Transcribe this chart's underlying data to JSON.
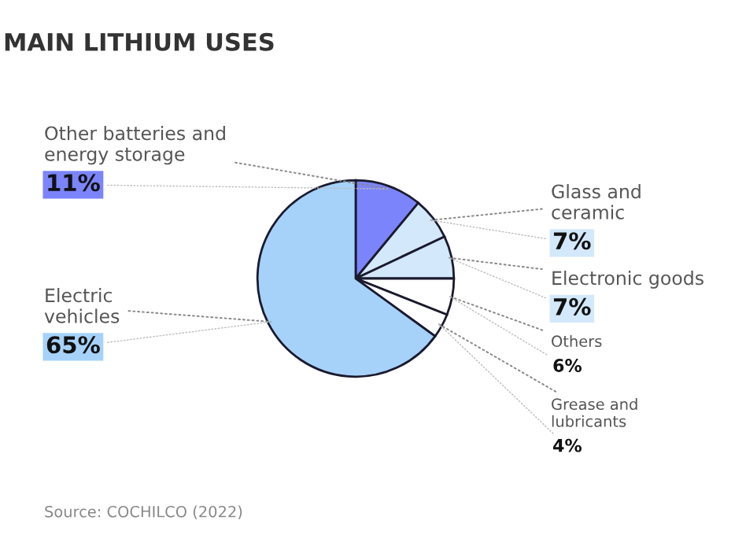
{
  "chart_data": {
    "type": "pie",
    "title": "MAIN LITHIUM USES",
    "categories": [
      "Other batteries and\nenergy storage",
      "Glass and\nceramic",
      "Electronic goods",
      "Others",
      "Grease and\nlubricants",
      "Electric\nvehicles"
    ],
    "values": [
      11,
      7,
      7,
      6,
      4,
      65
    ],
    "value_labels": [
      "11%",
      "7%",
      "7%",
      "6%",
      "4%",
      "65%"
    ],
    "colors": [
      "#7b84fb",
      "#d3e8fb",
      "#d3e8fb",
      "#ffffff",
      "#ffffff",
      "#a6d2fa"
    ],
    "annotations": [
      "Source: COCHILCO (2022)"
    ]
  }
}
